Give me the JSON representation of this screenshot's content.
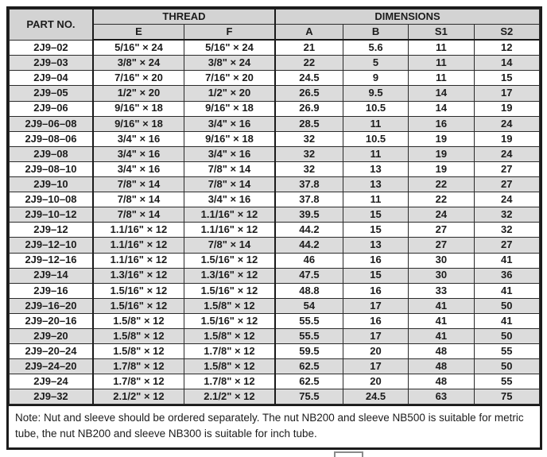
{
  "colors": {
    "header_bg": "#d3d3d3",
    "row_stripe_bg": "#dcdcdc",
    "border": "#1b1b1b",
    "text": "#1c1c1c"
  },
  "table": {
    "headers": {
      "part_no": "PART NO.",
      "thread": "THREAD",
      "dimensions": "DIMENSIONS",
      "sub": [
        "E",
        "F",
        "A",
        "B",
        "S1",
        "S2"
      ]
    },
    "rows": [
      [
        "2J9–02",
        "5/16\" × 24",
        "5/16\" × 24",
        "21",
        "5.6",
        "11",
        "12"
      ],
      [
        "2J9–03",
        "3/8\" × 24",
        "3/8\" × 24",
        "22",
        "5",
        "11",
        "14"
      ],
      [
        "2J9–04",
        "7/16\" × 20",
        "7/16\" × 20",
        "24.5",
        "9",
        "11",
        "15"
      ],
      [
        "2J9–05",
        "1/2\" × 20",
        "1/2\" × 20",
        "26.5",
        "9.5",
        "14",
        "17"
      ],
      [
        "2J9–06",
        "9/16\" × 18",
        "9/16\" × 18",
        "26.9",
        "10.5",
        "14",
        "19"
      ],
      [
        "2J9–06–08",
        "9/16\" × 18",
        "3/4\" × 16",
        "28.5",
        "11",
        "16",
        "24"
      ],
      [
        "2J9–08–06",
        "3/4\" × 16",
        "9/16\" × 18",
        "32",
        "10.5",
        "19",
        "19"
      ],
      [
        "2J9–08",
        "3/4\" × 16",
        "3/4\" × 16",
        "32",
        "11",
        "19",
        "24"
      ],
      [
        "2J9–08–10",
        "3/4\" × 16",
        "7/8\" × 14",
        "32",
        "13",
        "19",
        "27"
      ],
      [
        "2J9–10",
        "7/8\" × 14",
        "7/8\" × 14",
        "37.8",
        "13",
        "22",
        "27"
      ],
      [
        "2J9–10–08",
        "7/8\" × 14",
        "3/4\" × 16",
        "37.8",
        "11",
        "22",
        "24"
      ],
      [
        "2J9–10–12",
        "7/8\" × 14",
        "1.1/16\" × 12",
        "39.5",
        "15",
        "24",
        "32"
      ],
      [
        "2J9–12",
        "1.1/16\" × 12",
        "1.1/16\" × 12",
        "44.2",
        "15",
        "27",
        "32"
      ],
      [
        "2J9–12–10",
        "1.1/16\" × 12",
        "7/8\" × 14",
        "44.2",
        "13",
        "27",
        "27"
      ],
      [
        "2J9–12–16",
        "1.1/16\" × 12",
        "1.5/16\" × 12",
        "46",
        "16",
        "30",
        "41"
      ],
      [
        "2J9–14",
        "1.3/16\" × 12",
        "1.3/16\" × 12",
        "47.5",
        "15",
        "30",
        "36"
      ],
      [
        "2J9–16",
        "1.5/16\" × 12",
        "1.5/16\" × 12",
        "48.8",
        "16",
        "33",
        "41"
      ],
      [
        "2J9–16–20",
        "1.5/16\" × 12",
        "1.5/8\" × 12",
        "54",
        "17",
        "41",
        "50"
      ],
      [
        "2J9–20–16",
        "1.5/8\" × 12",
        "1.5/16\" × 12",
        "55.5",
        "16",
        "41",
        "41"
      ],
      [
        "2J9–20",
        "1.5/8\" × 12",
        "1.5/8\" × 12",
        "55.5",
        "17",
        "41",
        "50"
      ],
      [
        "2J9–20–24",
        "1.5/8\" × 12",
        "1.7/8\" × 12",
        "59.5",
        "20",
        "48",
        "55"
      ],
      [
        "2J9–24–20",
        "1.7/8\" × 12",
        "1.5/8\" × 12",
        "62.5",
        "17",
        "48",
        "50"
      ],
      [
        "2J9–24",
        "1.7/8\" × 12",
        "1.7/8\" × 12",
        "62.5",
        "20",
        "48",
        "55"
      ],
      [
        "2J9–32",
        "2.1/2\" × 12",
        "2.1/2\" × 12",
        "75.5",
        "24.5",
        "63",
        "75"
      ]
    ],
    "column_keys": [
      "part-no",
      "thread-e",
      "thread-f",
      "dim-a",
      "dim-b",
      "dim-s1",
      "dim-s2"
    ]
  },
  "note": "Note: Nut and sleeve should be ordered separately. The nut NB200 and sleeve NB500 is suitable for metric tube, the nut NB200 and sleeve NB300 is suitable for inch tube."
}
